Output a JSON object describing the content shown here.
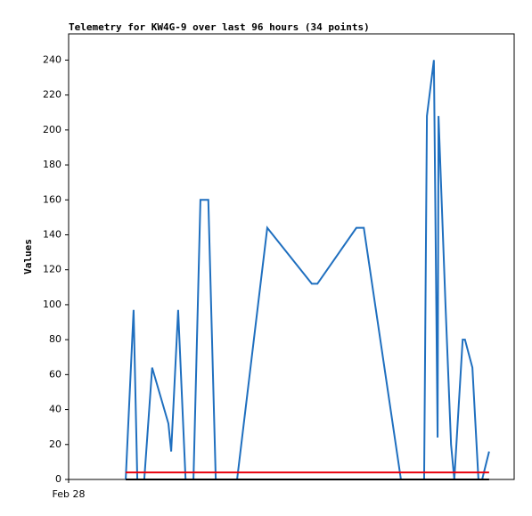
{
  "chart_data": {
    "type": "line",
    "title": "Telemetry for KW4G-9 over last 96 hours (34 points)",
    "y_label": "Values",
    "xlim": [
      0,
      96
    ],
    "xticks": [
      {
        "value": 0,
        "label": "Feb 28"
      }
    ],
    "ylim": [
      0,
      255
    ],
    "yticks": [
      0,
      20,
      40,
      60,
      80,
      100,
      120,
      140,
      160,
      180,
      200,
      220,
      240
    ],
    "grid": false,
    "series": [
      {
        "color": "#1f6fbf",
        "x": [
          12.3,
          14.0,
          14.8,
          16.3,
          18.0,
          21.5,
          22.1,
          23.6,
          25.2,
          26.9,
          28.4,
          30.1,
          31.7,
          36.3,
          42.8,
          52.4,
          53.6,
          62.0,
          63.6,
          71.6,
          76.6,
          77.2,
          78.7,
          79.5,
          79.7,
          81.2,
          82.4,
          83.1,
          84.9,
          85.4,
          87.0,
          88.3,
          89.1,
          90.6
        ],
        "values": [
          0,
          97,
          0,
          0,
          64,
          32,
          16,
          97,
          0,
          0,
          160,
          160,
          0,
          0,
          144,
          112,
          112,
          144,
          144,
          0,
          0,
          208,
          240,
          24,
          208,
          100,
          20,
          0,
          80,
          80,
          64,
          0,
          0,
          16
        ]
      },
      {
        "color": "#e8000b",
        "x": [
          12.3,
          90.6
        ],
        "values": [
          4,
          4
        ]
      },
      {
        "color": "#000000",
        "x": [
          12.3,
          90.6
        ],
        "values": [
          0,
          0
        ]
      }
    ]
  }
}
